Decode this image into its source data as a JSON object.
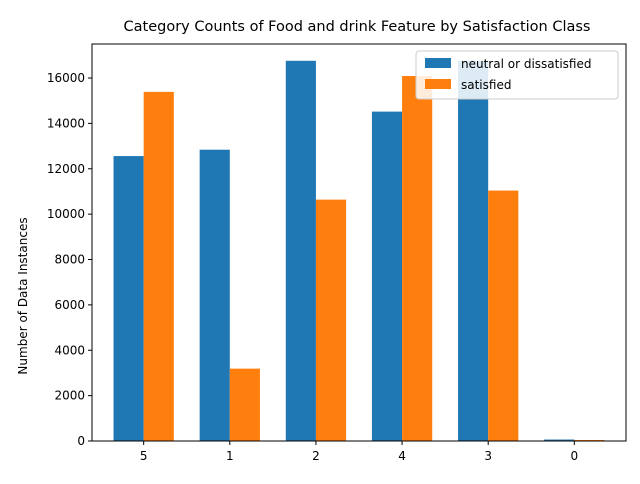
{
  "chart_data": {
    "type": "bar",
    "title": "Category Counts of Food and drink Feature by Satisfaction Class",
    "xlabel": "",
    "ylabel": "Number of Data Instances",
    "categories": [
      "5",
      "1",
      "2",
      "4",
      "3",
      "0"
    ],
    "series": [
      {
        "name": "neutral or dissatisfied",
        "color": "#1f77b4",
        "values": [
          12560,
          12840,
          16760,
          14520,
          16760,
          65
        ]
      },
      {
        "name": "satisfied",
        "color": "#ff7f0e",
        "values": [
          15390,
          3190,
          10640,
          16090,
          11040,
          45
        ]
      }
    ],
    "ylim": [
      0,
      17500
    ],
    "yticks": [
      0,
      2000,
      4000,
      6000,
      8000,
      10000,
      12000,
      14000,
      16000
    ],
    "grid": false,
    "legend": "top-right"
  }
}
